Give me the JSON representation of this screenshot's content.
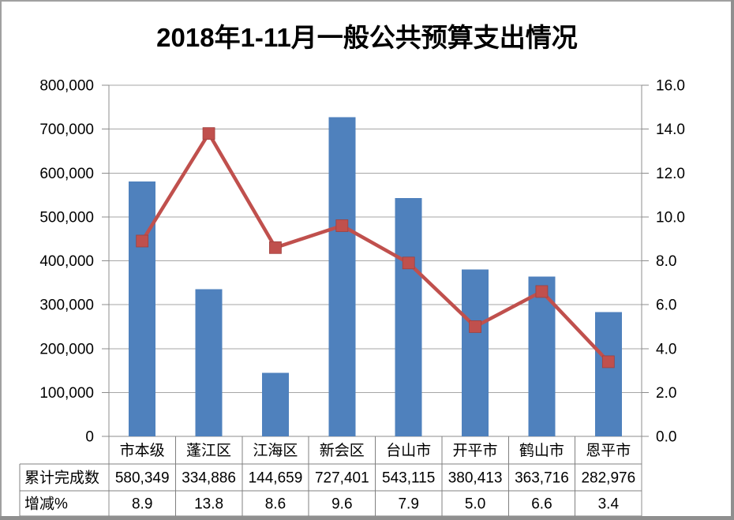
{
  "chart_data": {
    "type": "combo",
    "title": "2018年1-11月一般公共预算支出情况",
    "categories": [
      "市本级",
      "蓬江区",
      "江海区",
      "新会区",
      "台山市",
      "开平市",
      "鹤山市",
      "恩平市"
    ],
    "series": [
      {
        "name": "累计完成数",
        "chart_type": "bar",
        "axis": "left",
        "color": "#4F81BD",
        "values": [
          580349,
          334886,
          144659,
          727401,
          543115,
          380413,
          363716,
          282976
        ],
        "display_values": [
          "580,349",
          "334,886",
          "144,659",
          "727,401",
          "543,115",
          "380,413",
          "363,716",
          "282,976"
        ]
      },
      {
        "name": "增减%",
        "chart_type": "line",
        "marker": "square",
        "axis": "right",
        "color": "#C0504D",
        "values": [
          8.9,
          13.8,
          8.6,
          9.6,
          7.9,
          5.0,
          6.6,
          3.4
        ],
        "display_values": [
          "8.9",
          "13.8",
          "8.6",
          "9.6",
          "7.9",
          "5.0",
          "6.6",
          "3.4"
        ]
      }
    ],
    "left_axis": {
      "min": 0,
      "max": 800000,
      "step": 100000,
      "tick_labels": [
        "0",
        "100,000",
        "200,000",
        "300,000",
        "400,000",
        "500,000",
        "600,000",
        "700,000",
        "800,000"
      ]
    },
    "right_axis": {
      "min": 0,
      "max": 16,
      "step": 2,
      "tick_labels": [
        "0.0",
        "2.0",
        "4.0",
        "6.0",
        "8.0",
        "10.0",
        "12.0",
        "14.0",
        "16.0"
      ]
    },
    "gridlines": "horizontal",
    "legend_position": "none",
    "data_table_shown": true
  },
  "colors": {
    "bar": "#4F81BD",
    "line": "#C0504D",
    "marker": "#C0504D",
    "marker_edge": "#A0413E",
    "gridline": "#A6A6A6",
    "axis_line": "#8C8C8C",
    "table_border": "#808080",
    "text": "#000000",
    "frame_light": "#A0A0A0",
    "frame_dark": "#8F8F8F",
    "background": "#FFFFFF"
  }
}
